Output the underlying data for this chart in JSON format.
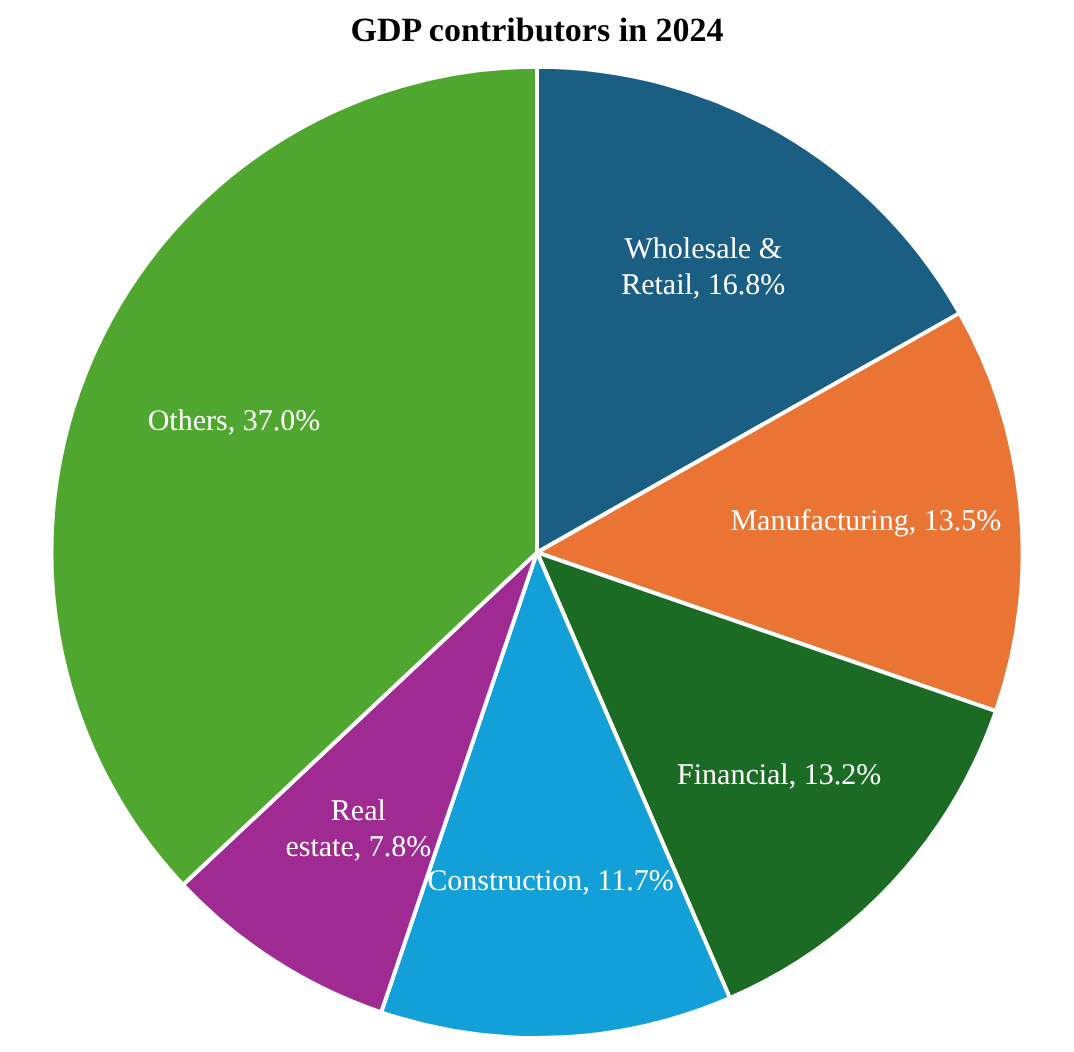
{
  "chart_data": {
    "type": "pie",
    "title": "GDP contributors in 2024",
    "categories": [
      "Wholesale & Retail",
      "Manufacturing",
      "Financial",
      "Construction",
      "Real estate",
      "Others"
    ],
    "values": [
      16.8,
      13.5,
      13.2,
      11.7,
      7.8,
      37.0
    ],
    "value_labels": [
      "16.8%",
      "13.5%",
      "13.2%",
      "11.7%",
      "7.8%",
      "37.0%"
    ],
    "colors": [
      "#1a5e84",
      "#e97434",
      "#1c6b24",
      "#139fd8",
      "#9e2a92",
      "#4fa72f"
    ]
  }
}
